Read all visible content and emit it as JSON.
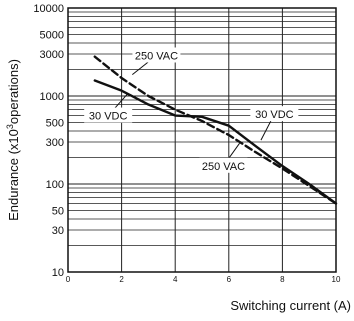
{
  "chart_data": {
    "type": "line",
    "xlabel": "Switching current (A)",
    "ylabel": "Endurance (x10",
    "ylabel_sup": "3",
    "ylabel_tail": "operations)",
    "xlim": [
      0,
      10
    ],
    "ylim": [
      10,
      10000
    ],
    "yscale": "log",
    "grid": true,
    "x_ticks": [
      {
        "value": 0,
        "label": "0"
      },
      {
        "value": 2,
        "label": "2"
      },
      {
        "value": 4,
        "label": "4"
      },
      {
        "value": 6,
        "label": "6"
      },
      {
        "value": 8,
        "label": "8"
      },
      {
        "value": 10,
        "label": "10"
      }
    ],
    "y_ticks": [
      {
        "value": 10,
        "label": "10"
      },
      {
        "value": 30,
        "label": "30"
      },
      {
        "value": 50,
        "label": "50"
      },
      {
        "value": 100,
        "label": "100"
      },
      {
        "value": 300,
        "label": "300"
      },
      {
        "value": 500,
        "label": "500"
      },
      {
        "value": 1000,
        "label": "1000"
      },
      {
        "value": 3000,
        "label": "3000"
      },
      {
        "value": 5000,
        "label": "5000"
      },
      {
        "value": 10000,
        "label": "10000"
      }
    ],
    "series": [
      {
        "name": "30 VDC",
        "style": "solid",
        "color": "#111111",
        "x": [
          1.0,
          2.0,
          3.0,
          4.0,
          5.0,
          6.0,
          7.0,
          8.0,
          9.0,
          10.0
        ],
        "y": [
          1500,
          1150,
          800,
          600,
          580,
          460,
          270,
          160,
          100,
          60
        ]
      },
      {
        "name": "250 VAC",
        "style": "dashed",
        "color": "#111111",
        "x": [
          1.0,
          2.0,
          3.0,
          4.0,
          5.0,
          6.0,
          7.0,
          8.0,
          9.0,
          10.0
        ],
        "y": [
          2800,
          1600,
          1000,
          700,
          520,
          360,
          230,
          150,
          95,
          60
        ]
      }
    ],
    "annotations": [
      {
        "text": "250 VAC",
        "series": "250 VAC",
        "x": 3.3,
        "y": 2600,
        "ax": 2.4,
        "ay": 1750
      },
      {
        "text": "30 VDC",
        "series": "30 VDC",
        "x": 1.5,
        "y": 540,
        "ax": 2.25,
        "ay": 1080
      },
      {
        "text": "30 VDC",
        "series": "30 VDC",
        "x": 7.7,
        "y": 560,
        "ax": 7.2,
        "ay": 315
      },
      {
        "text": "250 VAC",
        "series": "250 VAC",
        "x": 5.8,
        "y": 145,
        "ax": 6.4,
        "ay": 290
      }
    ]
  }
}
